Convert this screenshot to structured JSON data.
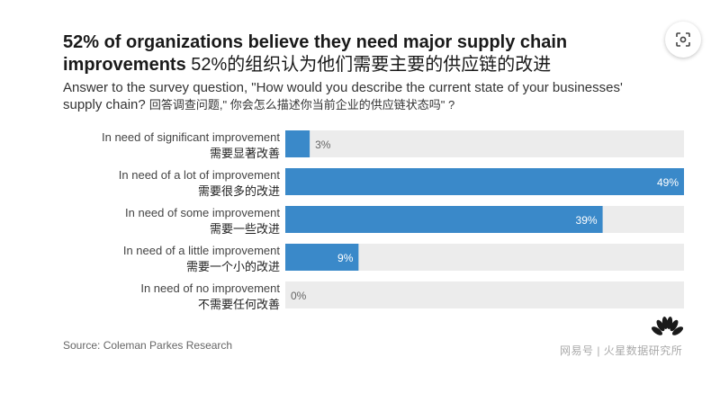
{
  "header": {
    "title_en": "52% of organizations believe they need major supply chain improvements",
    "title_cn": "52%的组织认为他们需要主要的供应链的改进",
    "subtitle_en": "Answer to the survey question, \"How would you describe the current state of your businesses' supply chain?",
    "subtitle_cn": "回答调查问题,\" 你会怎么描述你当前企业的供应链状态吗\" ?"
  },
  "chart_data": {
    "type": "bar",
    "orientation": "horizontal",
    "categories": [
      "In need of significant improvement",
      "In need of a lot of improvement",
      "In need of some improvement",
      "In need of a little improvement",
      "In need of no improvement"
    ],
    "categories_cn": [
      "需要显著改善",
      "需要很多的改进",
      "需要一些改进",
      "需要一个小的改进",
      "不需要任何改善"
    ],
    "values": [
      3,
      49,
      39,
      9,
      0
    ],
    "value_labels": [
      "3%",
      "49%",
      "39%",
      "9%",
      "0%"
    ],
    "xlim": [
      0,
      49
    ],
    "grid": false,
    "legend": "none",
    "colors": {
      "bar": "#3a89c9",
      "track": "#ececec"
    }
  },
  "footer": {
    "source": "Source: Coleman Parkes Research",
    "watermark": "网易号 | 火星数据研究所"
  },
  "toolbar": {
    "lens_icon": "lens-search-icon"
  }
}
